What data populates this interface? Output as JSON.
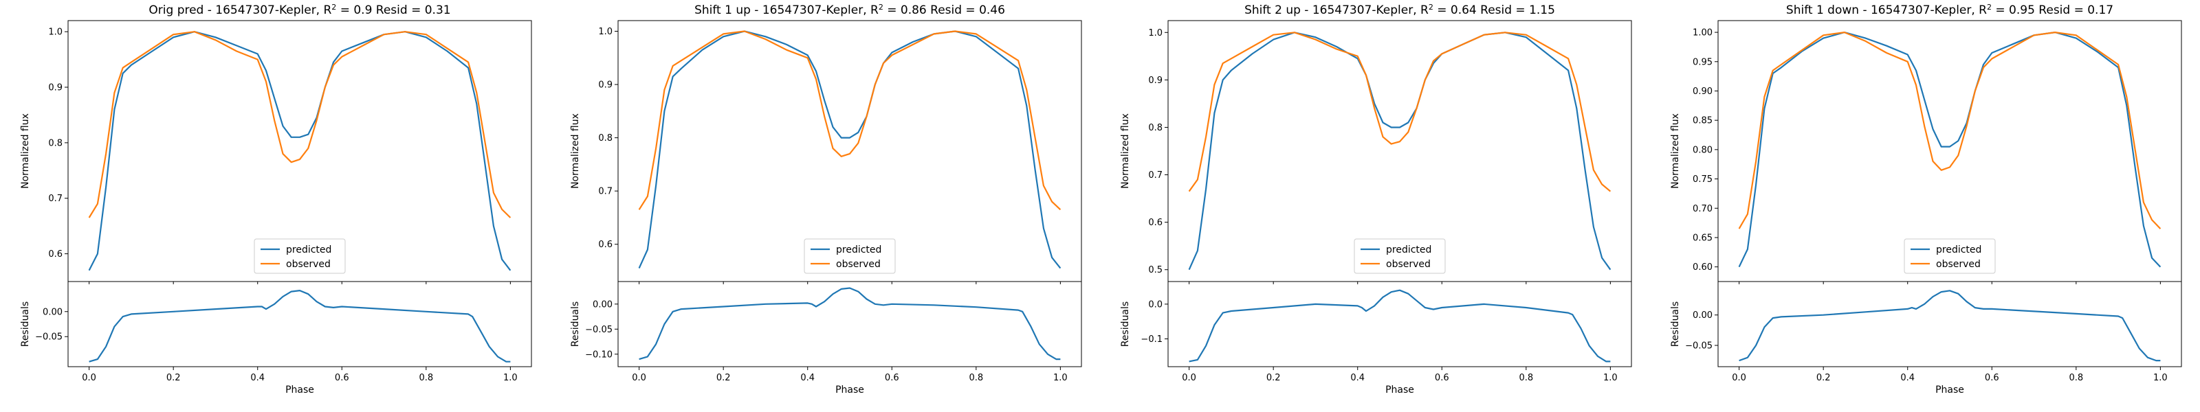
{
  "figure": {
    "colors": {
      "predicted": "#1f77b4",
      "observed": "#ff7f0e"
    },
    "legend": [
      "predicted",
      "observed"
    ],
    "x_label": "Phase",
    "top_y_label": "Normalized flux",
    "bottom_y_label": "Residuals"
  },
  "chart_data": [
    {
      "type": "line",
      "title": "Orig pred - 16547307-Kepler, $R^2 = 0.9$ Resid = 0.31",
      "title_text": "Orig pred - 16547307-Kepler, R",
      "title_sup": "2",
      "title_tail": " = 0.9 Resid = 0.31",
      "xlabel": "Phase",
      "ylabel": "Normalized flux",
      "xlim": [
        -0.05,
        1.05
      ],
      "xticks": [
        "0.0",
        "0.2",
        "0.4",
        "0.6",
        "0.8",
        "1.0"
      ],
      "ylim": [
        0.55,
        1.02
      ],
      "yticks": [
        "0.6",
        "0.7",
        "0.8",
        "0.9",
        "1.0"
      ],
      "residual_ylabel": "Residuals",
      "residual_ylim": [
        -0.11,
        0.06
      ],
      "residual_yticks": [
        "−0.05",
        "0.00"
      ],
      "legend_position": "lower center",
      "series": [
        {
          "name": "predicted",
          "color": "#1f77b4",
          "x": [
            0,
            0.02,
            0.04,
            0.06,
            0.08,
            0.1,
            0.15,
            0.2,
            0.25,
            0.3,
            0.35,
            0.4,
            0.42,
            0.44,
            0.46,
            0.48,
            0.5,
            0.52,
            0.54,
            0.56,
            0.58,
            0.6,
            0.65,
            0.7,
            0.75,
            0.8,
            0.85,
            0.9,
            0.92,
            0.94,
            0.96,
            0.98,
            1.0
          ],
          "y": [
            0.57,
            0.6,
            0.72,
            0.86,
            0.925,
            0.94,
            0.965,
            0.99,
            1.0,
            0.99,
            0.975,
            0.96,
            0.93,
            0.88,
            0.83,
            0.81,
            0.81,
            0.815,
            0.845,
            0.9,
            0.945,
            0.965,
            0.98,
            0.995,
            1.0,
            0.99,
            0.965,
            0.935,
            0.87,
            0.76,
            0.65,
            0.59,
            0.57
          ]
        },
        {
          "name": "observed",
          "color": "#ff7f0e",
          "x": [
            0,
            0.02,
            0.04,
            0.06,
            0.08,
            0.1,
            0.15,
            0.2,
            0.25,
            0.3,
            0.35,
            0.4,
            0.42,
            0.44,
            0.46,
            0.48,
            0.5,
            0.52,
            0.54,
            0.56,
            0.58,
            0.6,
            0.65,
            0.7,
            0.75,
            0.8,
            0.85,
            0.9,
            0.92,
            0.94,
            0.96,
            0.98,
            1.0
          ],
          "y": [
            0.665,
            0.69,
            0.78,
            0.89,
            0.935,
            0.945,
            0.97,
            0.995,
            1.0,
            0.985,
            0.965,
            0.95,
            0.91,
            0.84,
            0.78,
            0.765,
            0.77,
            0.79,
            0.84,
            0.9,
            0.94,
            0.955,
            0.975,
            0.995,
            1.0,
            0.995,
            0.97,
            0.945,
            0.89,
            0.8,
            0.71,
            0.68,
            0.665
          ]
        }
      ],
      "residuals": {
        "x": [
          0,
          0.02,
          0.04,
          0.06,
          0.08,
          0.1,
          0.2,
          0.3,
          0.4,
          0.41,
          0.42,
          0.44,
          0.46,
          0.48,
          0.5,
          0.52,
          0.54,
          0.56,
          0.58,
          0.6,
          0.7,
          0.8,
          0.9,
          0.91,
          0.93,
          0.95,
          0.97,
          0.99,
          1.0
        ],
        "y": [
          -0.1,
          -0.095,
          -0.07,
          -0.03,
          -0.01,
          -0.005,
          0.0,
          0.005,
          0.01,
          0.01,
          0.005,
          0.015,
          0.03,
          0.04,
          0.042,
          0.035,
          0.02,
          0.01,
          0.008,
          0.01,
          0.005,
          0.0,
          -0.005,
          -0.01,
          -0.04,
          -0.07,
          -0.09,
          -0.1,
          -0.1
        ]
      }
    },
    {
      "type": "line",
      "title": "Shift 1 up - 16547307-Kepler, $R^2 = 0.86$ Resid = 0.46",
      "title_text": "Shift 1 up - 16547307-Kepler, R",
      "title_sup": "2",
      "title_tail": " = 0.86 Resid = 0.46",
      "xlabel": "Phase",
      "ylabel": "Normalized flux",
      "xlim": [
        -0.05,
        1.05
      ],
      "xticks": [
        "0.0",
        "0.2",
        "0.4",
        "0.6",
        "0.8",
        "1.0"
      ],
      "ylim": [
        0.53,
        1.02
      ],
      "yticks": [
        "0.6",
        "0.7",
        "0.8",
        "0.9",
        "1.0"
      ],
      "residual_ylabel": "Residuals",
      "residual_ylim": [
        -0.125,
        0.045
      ],
      "residual_yticks": [
        "−0.10",
        "−0.05",
        "0.00"
      ],
      "legend_position": "lower center",
      "series": [
        {
          "name": "predicted",
          "color": "#1f77b4",
          "x": [
            0,
            0.02,
            0.04,
            0.06,
            0.08,
            0.1,
            0.15,
            0.2,
            0.25,
            0.3,
            0.35,
            0.4,
            0.42,
            0.44,
            0.46,
            0.48,
            0.5,
            0.52,
            0.54,
            0.56,
            0.58,
            0.6,
            0.65,
            0.7,
            0.75,
            0.8,
            0.85,
            0.9,
            0.92,
            0.94,
            0.96,
            0.98,
            1.0
          ],
          "y": [
            0.555,
            0.59,
            0.71,
            0.85,
            0.915,
            0.93,
            0.965,
            0.99,
            1.0,
            0.99,
            0.975,
            0.955,
            0.925,
            0.87,
            0.82,
            0.8,
            0.8,
            0.81,
            0.84,
            0.9,
            0.94,
            0.96,
            0.98,
            0.995,
            1.0,
            0.99,
            0.96,
            0.93,
            0.86,
            0.74,
            0.63,
            0.575,
            0.555
          ]
        },
        {
          "name": "observed",
          "color": "#ff7f0e",
          "x": [
            0,
            0.02,
            0.04,
            0.06,
            0.08,
            0.1,
            0.15,
            0.2,
            0.25,
            0.3,
            0.35,
            0.4,
            0.42,
            0.44,
            0.46,
            0.48,
            0.5,
            0.52,
            0.54,
            0.56,
            0.58,
            0.6,
            0.65,
            0.7,
            0.75,
            0.8,
            0.85,
            0.9,
            0.92,
            0.94,
            0.96,
            0.98,
            1.0
          ],
          "y": [
            0.665,
            0.69,
            0.78,
            0.89,
            0.935,
            0.945,
            0.97,
            0.995,
            1.0,
            0.985,
            0.965,
            0.95,
            0.91,
            0.84,
            0.78,
            0.765,
            0.77,
            0.79,
            0.84,
            0.9,
            0.94,
            0.955,
            0.975,
            0.995,
            1.0,
            0.995,
            0.97,
            0.945,
            0.89,
            0.8,
            0.71,
            0.68,
            0.665
          ]
        }
      ],
      "residuals": {
        "x": [
          0,
          0.02,
          0.04,
          0.06,
          0.08,
          0.1,
          0.2,
          0.3,
          0.4,
          0.41,
          0.42,
          0.44,
          0.46,
          0.48,
          0.5,
          0.52,
          0.54,
          0.56,
          0.58,
          0.6,
          0.7,
          0.8,
          0.9,
          0.91,
          0.93,
          0.95,
          0.97,
          0.99,
          1.0
        ],
        "y": [
          -0.11,
          -0.105,
          -0.08,
          -0.04,
          -0.015,
          -0.01,
          -0.005,
          0.0,
          0.002,
          0.0,
          -0.005,
          0.005,
          0.02,
          0.03,
          0.032,
          0.025,
          0.01,
          0.0,
          -0.002,
          0.0,
          -0.002,
          -0.006,
          -0.012,
          -0.015,
          -0.045,
          -0.08,
          -0.1,
          -0.11,
          -0.11
        ]
      }
    },
    {
      "type": "line",
      "title": "Shift 2 up - 16547307-Kepler, $R^2 = 0.64$ Resid = 1.15",
      "title_text": "Shift 2 up - 16547307-Kepler, R",
      "title_sup": "2",
      "title_tail": " = 0.64 Resid = 1.15",
      "xlabel": "Phase",
      "ylabel": "Normalized flux",
      "xlim": [
        -0.05,
        1.05
      ],
      "xticks": [
        "0.0",
        "0.2",
        "0.4",
        "0.6",
        "0.8",
        "1.0"
      ],
      "ylim": [
        0.475,
        1.025
      ],
      "yticks": [
        "0.5",
        "0.6",
        "0.7",
        "0.8",
        "0.9",
        "1.0"
      ],
      "residual_ylabel": "Residuals",
      "residual_ylim": [
        -0.18,
        0.065
      ],
      "residual_yticks": [
        "−0.1",
        "0.0"
      ],
      "legend_position": "lower center",
      "series": [
        {
          "name": "predicted",
          "color": "#1f77b4",
          "x": [
            0,
            0.02,
            0.04,
            0.06,
            0.08,
            0.1,
            0.15,
            0.2,
            0.25,
            0.3,
            0.35,
            0.4,
            0.42,
            0.44,
            0.46,
            0.48,
            0.5,
            0.52,
            0.54,
            0.56,
            0.58,
            0.6,
            0.65,
            0.7,
            0.75,
            0.8,
            0.85,
            0.9,
            0.92,
            0.94,
            0.96,
            0.98,
            1.0
          ],
          "y": [
            0.5,
            0.54,
            0.67,
            0.83,
            0.9,
            0.92,
            0.955,
            0.985,
            1.0,
            0.99,
            0.97,
            0.945,
            0.91,
            0.85,
            0.81,
            0.8,
            0.8,
            0.81,
            0.84,
            0.9,
            0.935,
            0.955,
            0.975,
            0.995,
            1.0,
            0.99,
            0.955,
            0.92,
            0.84,
            0.71,
            0.59,
            0.525,
            0.5
          ]
        },
        {
          "name": "observed",
          "color": "#ff7f0e",
          "x": [
            0,
            0.02,
            0.04,
            0.06,
            0.08,
            0.1,
            0.15,
            0.2,
            0.25,
            0.3,
            0.35,
            0.4,
            0.42,
            0.44,
            0.46,
            0.48,
            0.5,
            0.52,
            0.54,
            0.56,
            0.58,
            0.6,
            0.65,
            0.7,
            0.75,
            0.8,
            0.85,
            0.9,
            0.92,
            0.94,
            0.96,
            0.98,
            1.0
          ],
          "y": [
            0.665,
            0.69,
            0.78,
            0.89,
            0.935,
            0.945,
            0.97,
            0.995,
            1.0,
            0.985,
            0.965,
            0.95,
            0.91,
            0.84,
            0.78,
            0.765,
            0.77,
            0.79,
            0.84,
            0.9,
            0.94,
            0.955,
            0.975,
            0.995,
            1.0,
            0.995,
            0.97,
            0.945,
            0.89,
            0.8,
            0.71,
            0.68,
            0.665
          ]
        }
      ],
      "residuals": {
        "x": [
          0,
          0.02,
          0.04,
          0.06,
          0.08,
          0.1,
          0.2,
          0.3,
          0.4,
          0.41,
          0.42,
          0.44,
          0.46,
          0.48,
          0.5,
          0.52,
          0.54,
          0.56,
          0.58,
          0.6,
          0.7,
          0.8,
          0.9,
          0.91,
          0.93,
          0.95,
          0.97,
          0.99,
          1.0
        ],
        "y": [
          -0.165,
          -0.16,
          -0.12,
          -0.06,
          -0.025,
          -0.02,
          -0.01,
          0.0,
          -0.005,
          -0.01,
          -0.02,
          -0.005,
          0.02,
          0.035,
          0.04,
          0.03,
          0.01,
          -0.01,
          -0.015,
          -0.01,
          0.0,
          -0.01,
          -0.025,
          -0.03,
          -0.07,
          -0.12,
          -0.15,
          -0.165,
          -0.165
        ]
      }
    },
    {
      "type": "line",
      "title": "Shift 1 down - 16547307-Kepler, $R^2 = 0.95$ Resid = 0.17",
      "title_text": "Shift 1 down - 16547307-Kepler, R",
      "title_sup": "2",
      "title_tail": " = 0.95 Resid = 0.17",
      "xlabel": "Phase",
      "ylabel": "Normalized flux",
      "xlim": [
        -0.05,
        1.05
      ],
      "xticks": [
        "0.0",
        "0.2",
        "0.4",
        "0.6",
        "0.8",
        "1.0"
      ],
      "ylim": [
        0.575,
        1.02
      ],
      "yticks": [
        "0.60",
        "0.65",
        "0.70",
        "0.75",
        "0.80",
        "0.85",
        "0.90",
        "0.95",
        "1.00"
      ],
      "residual_ylabel": "Residuals",
      "residual_ylim": [
        -0.085,
        0.055
      ],
      "residual_yticks": [
        "−0.05",
        "0.00"
      ],
      "legend_position": "lower center",
      "series": [
        {
          "name": "predicted",
          "color": "#1f77b4",
          "x": [
            0,
            0.02,
            0.04,
            0.06,
            0.08,
            0.1,
            0.15,
            0.2,
            0.25,
            0.3,
            0.35,
            0.4,
            0.42,
            0.44,
            0.46,
            0.48,
            0.5,
            0.52,
            0.54,
            0.56,
            0.58,
            0.6,
            0.65,
            0.7,
            0.75,
            0.8,
            0.85,
            0.9,
            0.92,
            0.94,
            0.96,
            0.98,
            1.0
          ],
          "y": [
            0.6,
            0.63,
            0.74,
            0.87,
            0.93,
            0.94,
            0.968,
            0.99,
            1.0,
            0.99,
            0.977,
            0.962,
            0.935,
            0.885,
            0.835,
            0.805,
            0.805,
            0.815,
            0.845,
            0.9,
            0.945,
            0.965,
            0.98,
            0.995,
            1.0,
            0.99,
            0.967,
            0.94,
            0.875,
            0.77,
            0.67,
            0.615,
            0.6
          ]
        },
        {
          "name": "observed",
          "color": "#ff7f0e",
          "x": [
            0,
            0.02,
            0.04,
            0.06,
            0.08,
            0.1,
            0.15,
            0.2,
            0.25,
            0.3,
            0.35,
            0.4,
            0.42,
            0.44,
            0.46,
            0.48,
            0.5,
            0.52,
            0.54,
            0.56,
            0.58,
            0.6,
            0.65,
            0.7,
            0.75,
            0.8,
            0.85,
            0.9,
            0.92,
            0.94,
            0.96,
            0.98,
            1.0
          ],
          "y": [
            0.665,
            0.69,
            0.78,
            0.89,
            0.935,
            0.945,
            0.97,
            0.995,
            1.0,
            0.985,
            0.965,
            0.95,
            0.91,
            0.84,
            0.78,
            0.765,
            0.77,
            0.79,
            0.84,
            0.9,
            0.94,
            0.955,
            0.975,
            0.995,
            1.0,
            0.995,
            0.97,
            0.945,
            0.89,
            0.8,
            0.71,
            0.68,
            0.665
          ]
        }
      ],
      "residuals": {
        "x": [
          0,
          0.02,
          0.04,
          0.06,
          0.08,
          0.1,
          0.2,
          0.3,
          0.4,
          0.41,
          0.42,
          0.44,
          0.46,
          0.48,
          0.5,
          0.52,
          0.54,
          0.56,
          0.58,
          0.6,
          0.7,
          0.8,
          0.9,
          0.91,
          0.93,
          0.95,
          0.97,
          0.99,
          1.0
        ],
        "y": [
          -0.075,
          -0.07,
          -0.05,
          -0.02,
          -0.005,
          -0.003,
          0.0,
          0.005,
          0.01,
          0.012,
          0.01,
          0.018,
          0.03,
          0.038,
          0.04,
          0.035,
          0.022,
          0.012,
          0.01,
          0.01,
          0.006,
          0.002,
          -0.002,
          -0.005,
          -0.03,
          -0.055,
          -0.07,
          -0.075,
          -0.075
        ]
      }
    }
  ]
}
